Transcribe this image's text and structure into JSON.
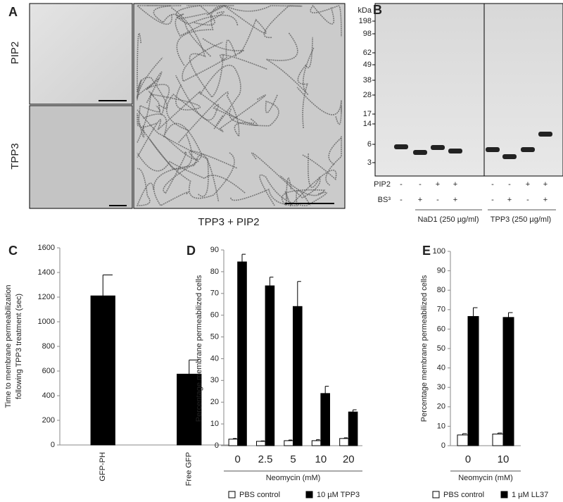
{
  "panel_labels": [
    "A",
    "B",
    "C",
    "D",
    "E"
  ],
  "panel_a": {
    "row_labels": [
      "PIP2",
      "TPP3"
    ],
    "caption": "TPP3 + PIP2"
  },
  "panel_b": {
    "unit": "kDa",
    "markers": [
      "198",
      "98",
      "62",
      "49",
      "38",
      "28",
      "17",
      "14",
      "6",
      "3"
    ],
    "rows": [
      {
        "label": "PIP2",
        "marks": [
          "-",
          "-",
          "+",
          "+",
          "-",
          "-",
          "+",
          "+"
        ]
      },
      {
        "label": "BS³",
        "marks": [
          "-",
          "+",
          "-",
          "+",
          "-",
          "+",
          "-",
          "+"
        ]
      }
    ],
    "groups": [
      "NaD1 (250 µg/ml)",
      "TPP3 (250 µg/ml)"
    ]
  },
  "chart_data": [
    {
      "type": "bar",
      "y_label": [
        "Time to membrane permeabilization",
        "following TPP3 treatment (sec)"
      ],
      "categories": [
        "GFP-PH",
        "Free GFP"
      ],
      "values": [
        1210,
        575
      ],
      "errors": [
        170,
        115
      ],
      "color": "#000000",
      "ylim": [
        0,
        1600
      ],
      "yticks": [
        0,
        200,
        400,
        600,
        800,
        1000,
        1200,
        1400,
        1600
      ]
    },
    {
      "type": "bar",
      "y_label": [
        "Percentage membrane permeabilized cells"
      ],
      "x_label": "Neomycin (mM)",
      "categories": [
        "0",
        "2.5",
        "5",
        "10",
        "20"
      ],
      "series": [
        {
          "name": "PBS control",
          "color": "#ffffff",
          "values": [
            3,
            2,
            2.3,
            2.3,
            3.3
          ],
          "errors": [
            0.3,
            0.2,
            0.3,
            0.5,
            0.3
          ]
        },
        {
          "name": "10 µM TPP3",
          "color": "#000000",
          "values": [
            84.5,
            73.5,
            64,
            24,
            15.5
          ],
          "errors": [
            3.5,
            4,
            11.5,
            3.3,
            1
          ]
        }
      ],
      "ylim": [
        0,
        90
      ],
      "yticks": [
        0,
        10,
        20,
        30,
        40,
        50,
        60,
        70,
        80,
        90
      ],
      "legend": "bottom"
    },
    {
      "type": "bar",
      "y_label": [
        "Percentage membrane permeabilized cells"
      ],
      "x_label": "Neomycin (mM)",
      "categories": [
        "0",
        "10"
      ],
      "series": [
        {
          "name": "PBS control",
          "color": "#ffffff",
          "values": [
            5.5,
            6
          ],
          "errors": [
            0.7,
            0.5
          ]
        },
        {
          "name": "1 µM LL37",
          "color": "#000000",
          "values": [
            66.5,
            66
          ],
          "errors": [
            4.5,
            2.5
          ]
        }
      ],
      "ylim": [
        0,
        100
      ],
      "yticks": [
        0,
        10,
        20,
        30,
        40,
        50,
        60,
        70,
        80,
        90,
        100
      ],
      "legend": "bottom"
    }
  ]
}
